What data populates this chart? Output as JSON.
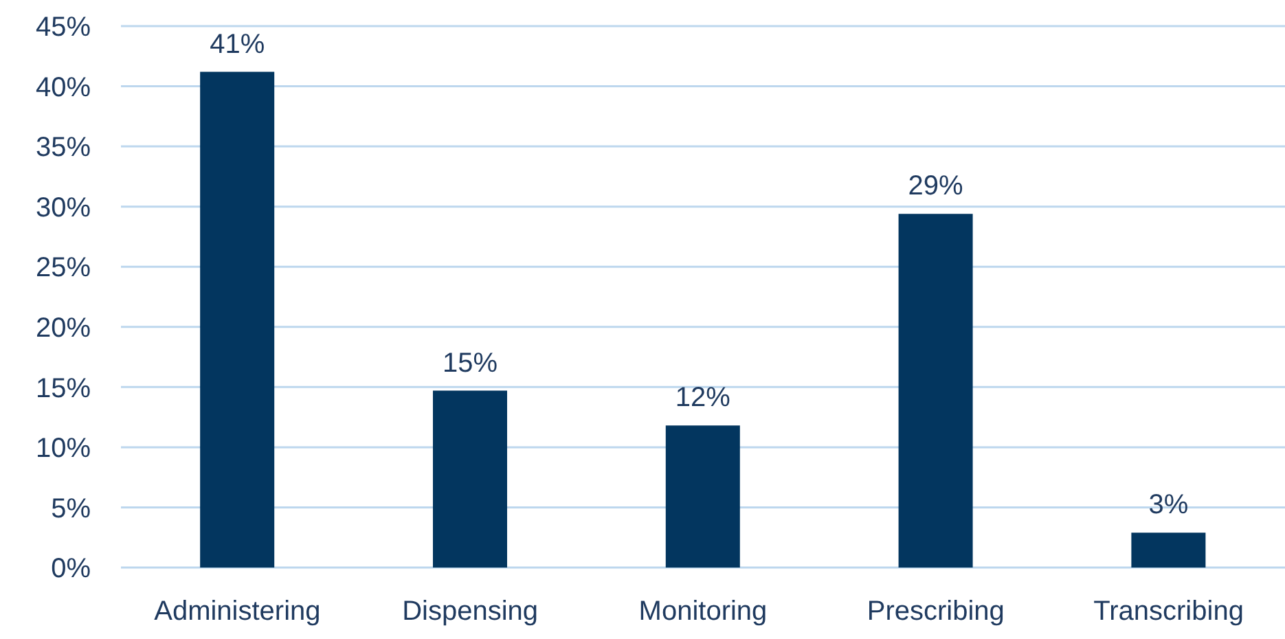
{
  "chart_data": {
    "type": "bar",
    "categories": [
      "Administering",
      "Dispensing",
      "Monitoring",
      "Prescribing",
      "Transcribing"
    ],
    "values": [
      41.2,
      14.7,
      11.8,
      29.4,
      2.9
    ],
    "value_labels": [
      "41%",
      "15%",
      "12%",
      "29%",
      "3%"
    ],
    "color": "#03365f",
    "ylim": [
      0,
      45
    ],
    "yticks": [
      {
        "value": 0,
        "label": "0%"
      },
      {
        "value": 5,
        "label": "5%"
      },
      {
        "value": 10,
        "label": "10%"
      },
      {
        "value": 15,
        "label": "15%"
      },
      {
        "value": 20,
        "label": "20%"
      },
      {
        "value": 25,
        "label": "25%"
      },
      {
        "value": 30,
        "label": "30%"
      },
      {
        "value": 35,
        "label": "35%"
      },
      {
        "value": 40,
        "label": "40%"
      },
      {
        "value": 45,
        "label": "45%"
      }
    ],
    "grid": "y"
  }
}
